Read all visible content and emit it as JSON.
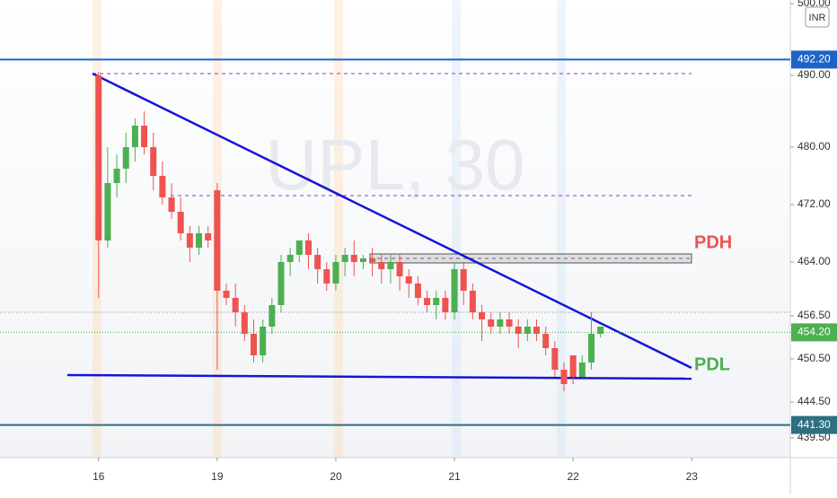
{
  "chart_data": {
    "type": "candlestick",
    "watermark": "UPL, 30",
    "currency": "INR",
    "up_color": "#4caf50",
    "down_color": "#ef5350",
    "x": [
      0,
      1,
      2,
      3,
      4,
      5,
      6,
      7,
      8,
      9,
      10,
      11,
      12,
      13,
      14,
      15,
      16,
      17,
      18,
      19,
      20,
      21,
      22,
      23,
      24,
      25,
      26,
      27,
      28,
      29,
      30,
      31,
      32,
      33,
      34,
      35,
      36,
      37,
      38,
      39,
      40,
      41,
      42,
      43,
      44,
      45,
      46,
      47,
      48,
      49,
      50,
      51,
      52,
      53,
      54,
      55
    ],
    "open": [
      490,
      467,
      475,
      477,
      480,
      483,
      480,
      476,
      473,
      471,
      468,
      466,
      468,
      474,
      460,
      459,
      457,
      454,
      451,
      455,
      458,
      464,
      465,
      467,
      465,
      463,
      461,
      464,
      465,
      464,
      464.5,
      464,
      463,
      464,
      462,
      461,
      459,
      458,
      459,
      457,
      463,
      460,
      457,
      456,
      455,
      456,
      455,
      454,
      455,
      454,
      452,
      449,
      451,
      448,
      450,
      454
    ],
    "high": [
      490.5,
      480,
      479,
      482,
      484,
      485,
      482,
      478,
      475,
      473,
      469,
      469,
      469,
      475,
      461,
      461,
      458,
      456,
      456,
      459,
      465,
      466,
      467,
      468,
      466,
      464,
      465,
      466,
      467,
      465,
      466,
      465,
      465,
      465,
      463,
      462,
      460,
      460,
      460,
      464,
      464,
      461,
      458,
      457,
      457,
      457,
      456,
      456,
      456,
      455,
      453,
      450,
      451,
      451,
      457,
      455
    ],
    "low": [
      459,
      466,
      473,
      475,
      478,
      479,
      474,
      472,
      470,
      467,
      464,
      465,
      466,
      449,
      458,
      455,
      453,
      450,
      450,
      454,
      457,
      462,
      464,
      463,
      461,
      460,
      460,
      462,
      462,
      463,
      462,
      461,
      461,
      460,
      459,
      458,
      457,
      456,
      456,
      456,
      458,
      456,
      453,
      454,
      454,
      454,
      452,
      453,
      453,
      451,
      448,
      446,
      447,
      448,
      449,
      453.5
    ],
    "close": [
      467,
      475,
      477,
      480,
      483,
      480,
      476,
      473,
      471,
      468,
      466,
      468,
      467,
      460,
      459,
      457,
      454,
      451,
      455,
      458,
      464,
      465,
      467,
      465,
      463,
      461,
      464,
      465,
      464,
      464.5,
      464,
      463,
      464,
      462,
      461,
      459,
      458,
      459,
      457,
      463,
      460,
      457,
      456,
      455,
      456,
      455,
      454,
      455,
      454,
      452,
      449,
      447,
      448,
      450,
      454,
      455
    ],
    "xlim": [
      -10.8,
      75.8
    ],
    "xticks": [
      {
        "value": 0,
        "label": "16"
      },
      {
        "value": 13,
        "label": "19"
      },
      {
        "value": 26,
        "label": "20"
      },
      {
        "value": 39,
        "label": "21"
      },
      {
        "value": 52,
        "label": "22"
      },
      {
        "value": 65,
        "label": "23"
      }
    ],
    "ylim": [
      436.75,
      500.5
    ],
    "yticks": [
      {
        "value": 500,
        "label": "500.00"
      },
      {
        "value": 490,
        "label": "490.00"
      },
      {
        "value": 480,
        "label": "480.00"
      },
      {
        "value": 472,
        "label": "472.00"
      },
      {
        "value": 464,
        "label": "464.00"
      },
      {
        "value": 456.5,
        "label": "456.50"
      },
      {
        "value": 450.5,
        "label": "450.50"
      },
      {
        "value": 444.5,
        "label": "444.50"
      },
      {
        "value": 439.5,
        "label": "439.50"
      }
    ],
    "price_markers": [
      {
        "value": 492.2,
        "label": "492.20",
        "color": "#1e63c7",
        "line": "solid"
      },
      {
        "value": 454.2,
        "label": "454.20",
        "color": "#4caf50",
        "line": "dotted"
      },
      {
        "value": 441.3,
        "label": "441.30",
        "color": "#2f6f80",
        "line": "solid"
      }
    ],
    "annotations": [
      {
        "text": "PDH",
        "color": "#ef5350"
      },
      {
        "text": "PDL",
        "color": "#4caf50"
      }
    ]
  }
}
